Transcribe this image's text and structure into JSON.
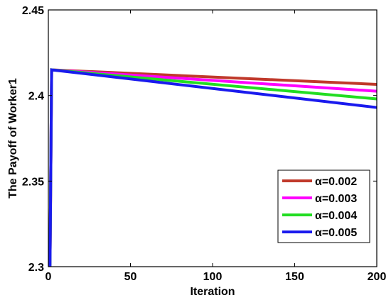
{
  "chart_data": {
    "type": "line",
    "xlabel": "Iteration",
    "ylabel": "The Payoff of Worker1",
    "xlim": [
      0,
      200
    ],
    "ylim": [
      2.3,
      2.45
    ],
    "xticks": [
      0,
      50,
      100,
      150,
      200
    ],
    "xtick_labels": [
      "0",
      "50",
      "100",
      "150",
      "200"
    ],
    "yticks": [
      2.3,
      2.35,
      2.4,
      2.45
    ],
    "ytick_labels": [
      "2.3",
      "2.35",
      "2.4",
      "2.45"
    ],
    "grid": false,
    "legend_position": "lower-right",
    "series": [
      {
        "name": "α=0.002",
        "color": "#c0392b",
        "x": [
          1,
          2,
          200
        ],
        "y": [
          2.3,
          2.415,
          2.4065
        ]
      },
      {
        "name": "α=0.003",
        "color": "#ff00ff",
        "x": [
          1,
          2,
          200
        ],
        "y": [
          2.3,
          2.415,
          2.4025
        ]
      },
      {
        "name": "α=0.004",
        "color": "#22dd22",
        "x": [
          1,
          2,
          200
        ],
        "y": [
          2.3,
          2.415,
          2.398
        ]
      },
      {
        "name": "α=0.005",
        "color": "#1a1aee",
        "x": [
          1,
          2,
          200
        ],
        "y": [
          2.3,
          2.415,
          2.393
        ]
      }
    ]
  }
}
